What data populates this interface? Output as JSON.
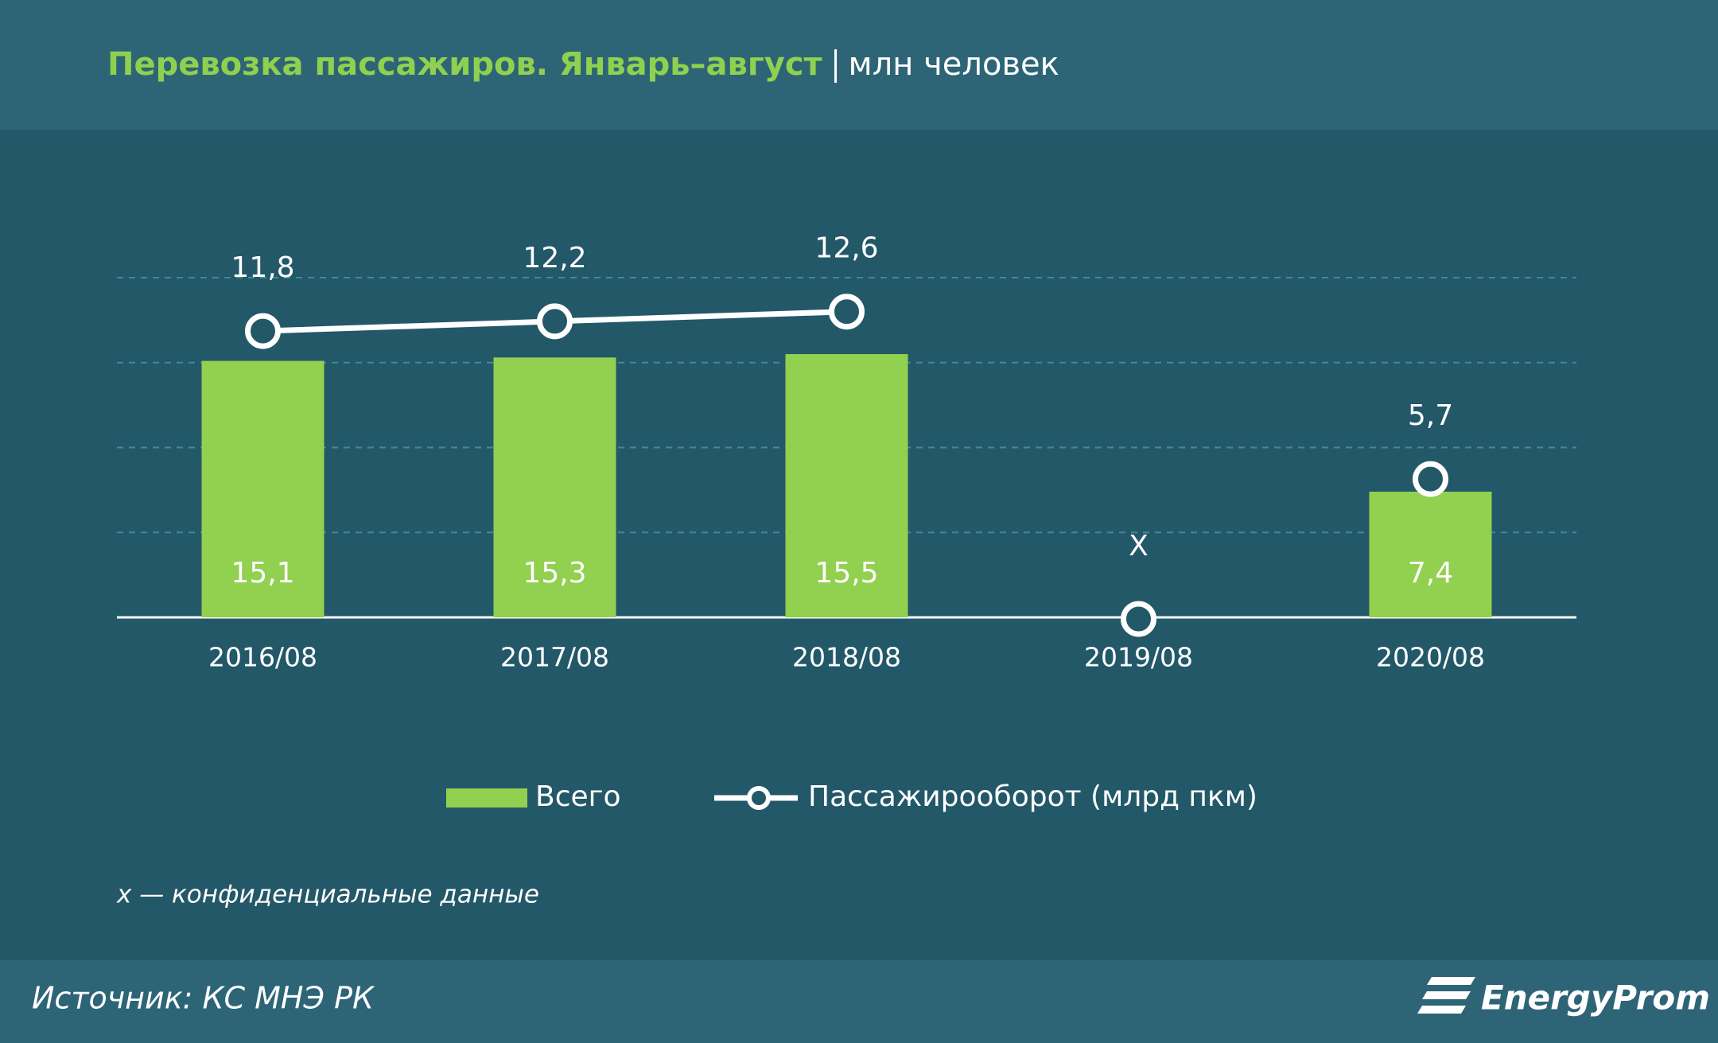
{
  "chart_data": {
    "type": "bar_line",
    "title": "Перевозка пассажиров. Январь–август",
    "subtitle": "млн человек",
    "categories": [
      "2016/08",
      "2017/08",
      "2018/08",
      "2019/08",
      "2020/08"
    ],
    "series": [
      {
        "name": "Всего",
        "type": "bar",
        "color": "#92d050",
        "values": [
          15.1,
          15.3,
          15.5,
          null,
          7.4
        ],
        "value_labels": [
          "15,1",
          "15,3",
          "15,5",
          null,
          "7,4"
        ]
      },
      {
        "name": "Пассажирооборот (млрд пкм)",
        "type": "line",
        "axis": "y2",
        "color": "#ffffff",
        "values": [
          11.8,
          12.2,
          12.6,
          null,
          5.7
        ],
        "value_labels": [
          "11,8",
          "12,2",
          "12,6",
          null,
          "5,7"
        ]
      }
    ],
    "annotations": [
      {
        "x": "2019/08",
        "text": "X"
      }
    ],
    "ylim": [
      0,
      20
    ],
    "yticks": [
      0,
      5,
      10,
      15,
      20
    ],
    "y2lim": [
      0,
      14
    ],
    "grid": true,
    "legend": "bottom",
    "note": "x — конфиденциальные данные",
    "source": "Источник: КС МНЭ РК",
    "logo": "EnergyProm"
  }
}
